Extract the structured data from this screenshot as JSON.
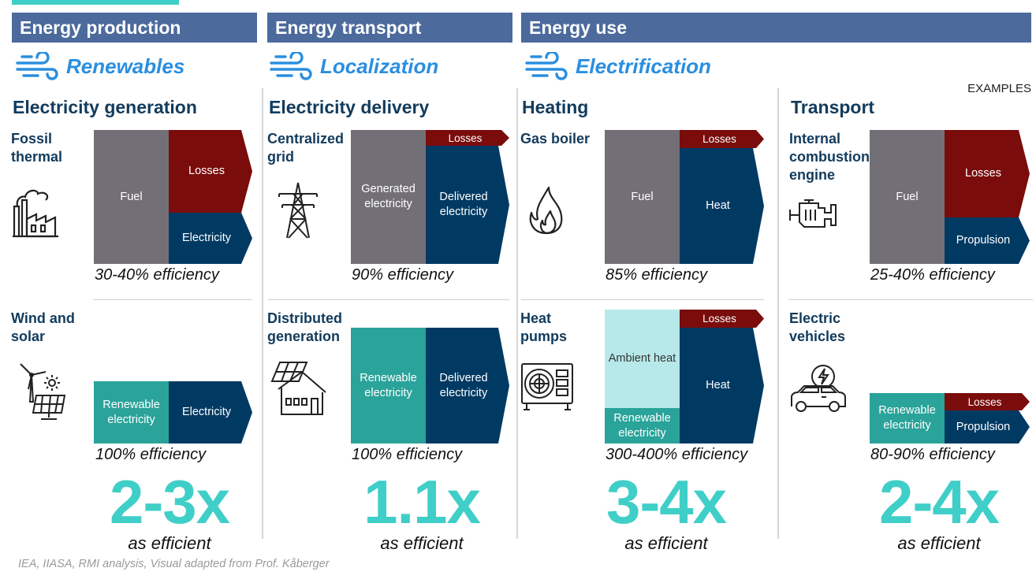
{
  "headers": [
    "Energy production",
    "Energy transport",
    "Energy use"
  ],
  "themes": [
    "Renewables",
    "Localization",
    "Electrification"
  ],
  "examples_label": "EXAMPLES",
  "columns": [
    {
      "title": "Electricity generation",
      "top": {
        "label": "Fossil thermal",
        "blocks": [
          "Fuel",
          "Losses",
          "Electricity"
        ],
        "efficiency": "30-40% efficiency"
      },
      "bottom": {
        "label": "Wind and solar",
        "blocks": [
          "Renewable electricity",
          "Electricity"
        ],
        "efficiency": "100% efficiency"
      },
      "multiplier": "2-3x",
      "multiplier_sub": "as efficient"
    },
    {
      "title": "Electricity delivery",
      "top": {
        "label": "Centralized grid",
        "blocks": [
          "Generated electricity",
          "Losses",
          "Delivered electricity"
        ],
        "efficiency": "90% efficiency"
      },
      "bottom": {
        "label": "Distributed generation",
        "blocks": [
          "Renewable electricity",
          "Delivered electricity"
        ],
        "efficiency": "100% efficiency"
      },
      "multiplier": "1.1x",
      "multiplier_sub": "as efficient"
    },
    {
      "title": "Heating",
      "top": {
        "label": "Gas boiler",
        "blocks": [
          "Fuel",
          "Losses",
          "Heat"
        ],
        "efficiency": "85% efficiency"
      },
      "bottom": {
        "label": "Heat pumps",
        "blocks": [
          "Ambient heat",
          "Renewable electricity",
          "Losses",
          "Heat"
        ],
        "efficiency": "300-400% efficiency"
      },
      "multiplier": "3-4x",
      "multiplier_sub": "as efficient"
    },
    {
      "title": "Transport",
      "top": {
        "label": "Internal combustion engine",
        "blocks": [
          "Fuel",
          "Losses",
          "Propulsion"
        ],
        "efficiency": "25-40% efficiency"
      },
      "bottom": {
        "label": "Electric vehicles",
        "blocks": [
          "Renewable electricity",
          "Losses",
          "Propulsion"
        ],
        "efficiency": "80-90% efficiency"
      },
      "multiplier": "2-4x",
      "multiplier_sub": "as efficient"
    }
  ],
  "source": "IEA, IIASA, RMI analysis, Visual adapted from Prof. Kåberger",
  "colors": {
    "header": "#4c6a9c",
    "theme": "#2a8fe0",
    "accent": "#3fcfc8",
    "fuel": "#736f77",
    "losses": "#7a0c0c",
    "output": "#003a63",
    "renewable": "#2aa39a",
    "ambient": "#b7e9ea"
  },
  "icons": [
    "wind-icon",
    "factory-icon",
    "wind-solar-icon",
    "transmission-tower-icon",
    "house-solar-icon",
    "flame-icon",
    "heat-pump-icon",
    "engine-icon",
    "electric-car-icon"
  ]
}
